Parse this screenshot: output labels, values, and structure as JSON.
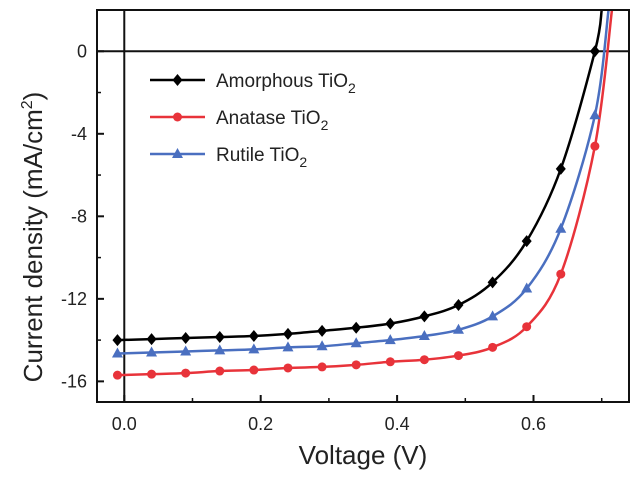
{
  "chart_data": {
    "type": "line",
    "xlabel": "Voltage (V)",
    "ylabel": "Current density (mA/cm",
    "ylabel_sup": "2",
    "ylabel_end": ")",
    "xlim": [
      -0.04,
      0.74
    ],
    "ylim": [
      -17,
      2
    ],
    "xticks": [
      0.0,
      0.2,
      0.4,
      0.6
    ],
    "xtick_labels": [
      "0.0",
      "0.2",
      "0.4",
      "0.6"
    ],
    "yticks": [
      0,
      -4,
      -8,
      -12,
      -16
    ],
    "ytick_labels": [
      "0",
      "-4",
      "-8",
      "-12",
      "-16"
    ],
    "zero_lines": true,
    "legend_position": "top-left",
    "series": [
      {
        "name": "Amorphous TiO",
        "name_sub": "2",
        "color": "#000000",
        "marker": "diamond",
        "x": [
          -0.01,
          0.04,
          0.09,
          0.14,
          0.19,
          0.24,
          0.29,
          0.34,
          0.39,
          0.44,
          0.49,
          0.54,
          0.59,
          0.64,
          0.69,
          0.7
        ],
        "y": [
          -14.0,
          -13.95,
          -13.9,
          -13.85,
          -13.8,
          -13.7,
          -13.55,
          -13.4,
          -13.2,
          -12.85,
          -12.3,
          -11.2,
          -9.2,
          -5.7,
          0.0,
          2.0
        ]
      },
      {
        "name": "Anatase TiO",
        "name_sub": "2",
        "color": "#e8333a",
        "marker": "circle",
        "x": [
          -0.01,
          0.04,
          0.09,
          0.14,
          0.19,
          0.24,
          0.29,
          0.34,
          0.39,
          0.44,
          0.49,
          0.54,
          0.59,
          0.64,
          0.69,
          0.715
        ],
        "y": [
          -15.7,
          -15.65,
          -15.6,
          -15.5,
          -15.45,
          -15.35,
          -15.3,
          -15.2,
          -15.05,
          -14.95,
          -14.75,
          -14.35,
          -13.35,
          -10.8,
          -4.6,
          2.0
        ]
      },
      {
        "name": "Rutile TiO",
        "name_sub": "2",
        "color": "#4a6fc0",
        "marker": "triangle",
        "x": [
          -0.01,
          0.04,
          0.09,
          0.14,
          0.19,
          0.24,
          0.29,
          0.34,
          0.39,
          0.44,
          0.49,
          0.54,
          0.59,
          0.64,
          0.69,
          0.71
        ],
        "y": [
          -14.65,
          -14.6,
          -14.55,
          -14.5,
          -14.45,
          -14.35,
          -14.3,
          -14.15,
          -14.0,
          -13.8,
          -13.5,
          -12.85,
          -11.5,
          -8.6,
          -3.1,
          2.0
        ]
      }
    ]
  }
}
